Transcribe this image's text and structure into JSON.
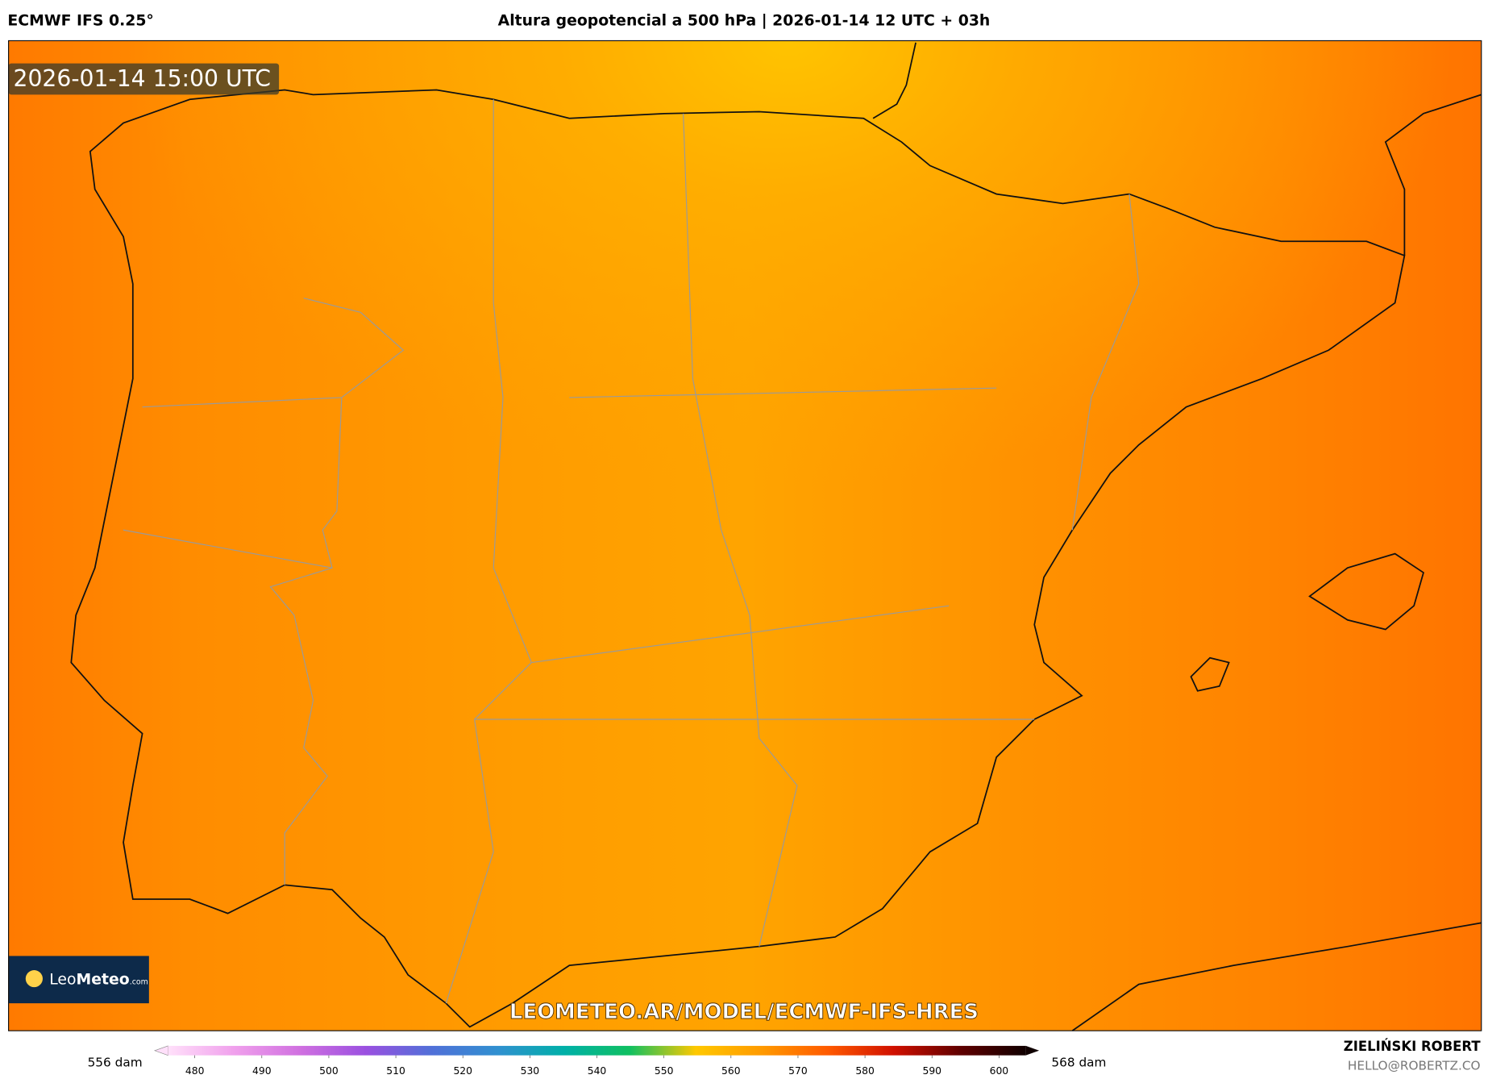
{
  "header": {
    "model": "ECMWF IFS 0.25°",
    "title": "Altura geopotencial a 500 hPa | 2026-01-14 12 UTC + 03h"
  },
  "map": {
    "valid_time": "2026-01-14 15:00 UTC",
    "url": "LEOMETEO.AR/MODEL/ECMWF-IFS-HRES",
    "logo": {
      "name": "Leo",
      "name_bold": "Meteo",
      "suffix": ".com"
    }
  },
  "colorbar": {
    "min_label": "556 dam",
    "max_label": "568 dam",
    "lim": [
      476,
      604
    ],
    "ticks": [
      480,
      490,
      500,
      510,
      520,
      530,
      540,
      550,
      560,
      570,
      580,
      590,
      600
    ],
    "colors": [
      "#ffe0fa",
      "#f0a0ec",
      "#d070e0",
      "#9a50e0",
      "#5070d8",
      "#3090d0",
      "#00b0a8",
      "#10c060",
      "#ffc800",
      "#ff9a00",
      "#ff5a00",
      "#d01000",
      "#600000",
      "#100000"
    ]
  },
  "credits": {
    "author": "ZIELIŃSKI ROBERT",
    "email": "HELLO@ROBERTZ.CO"
  }
}
